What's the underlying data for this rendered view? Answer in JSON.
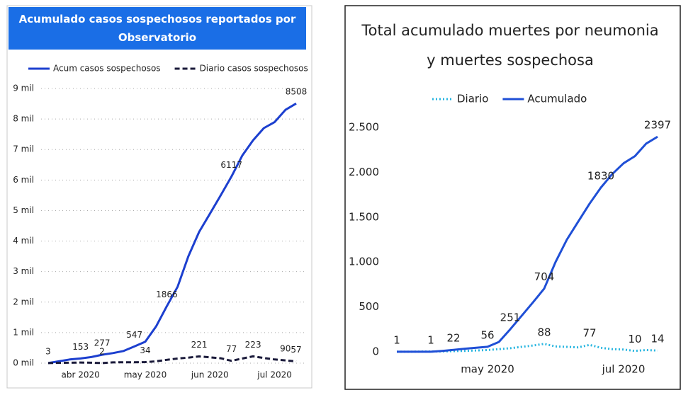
{
  "chart_data": [
    {
      "type": "line",
      "title": "Acumulado casos sospechosos reportados por Observatorio",
      "categories": [
        null,
        null,
        null,
        "abr 2020",
        null,
        null,
        null,
        null,
        null,
        "may 2020",
        null,
        null,
        null,
        null,
        null,
        "jun 2020",
        null,
        null,
        null,
        null,
        null,
        "jul 2020",
        null,
        null
      ],
      "series": [
        {
          "name": "Acum casos sospechosos",
          "color": "#1c3fcf",
          "dash": "solid",
          "values": [
            3,
            60,
            120,
            153,
            200,
            277,
            330,
            400,
            547,
            700,
            1200,
            1866,
            2500,
            3500,
            4300,
            4900,
            5500,
            6117,
            6800,
            7300,
            7700,
            7900,
            8300,
            8508
          ],
          "value_labels": [
            "3",
            null,
            null,
            "153",
            null,
            "277",
            null,
            null,
            "547",
            null,
            null,
            "1866",
            null,
            null,
            null,
            null,
            null,
            "6117",
            null,
            null,
            null,
            null,
            null,
            "8508"
          ]
        },
        {
          "name": "Diario casos sospechosos",
          "color": "#1a1a3a",
          "dash": "dashed",
          "values": [
            3,
            10,
            15,
            20,
            15,
            2,
            25,
            30,
            28,
            34,
            60,
            110,
            150,
            180,
            221,
            190,
            160,
            77,
            150,
            223,
            170,
            120,
            90,
            57
          ],
          "value_labels": [
            null,
            null,
            null,
            null,
            null,
            "2",
            null,
            null,
            null,
            "34",
            null,
            null,
            null,
            null,
            "221",
            null,
            null,
            "77",
            null,
            "223",
            null,
            null,
            "90",
            "57"
          ]
        }
      ],
      "ylim": [
        0,
        9000
      ],
      "yticks": [
        {
          "value": 0,
          "label": "0 mil"
        },
        {
          "value": 1000,
          "label": "1 mil"
        },
        {
          "value": 2000,
          "label": "2 mil"
        },
        {
          "value": 3000,
          "label": "3 mil"
        },
        {
          "value": 4000,
          "label": "4 mil"
        },
        {
          "value": 5000,
          "label": "5 mil"
        },
        {
          "value": 6000,
          "label": "6 mil"
        },
        {
          "value": 7000,
          "label": "7 mil"
        },
        {
          "value": 8000,
          "label": "8 mil"
        },
        {
          "value": 9000,
          "label": "9 mil"
        }
      ],
      "grid": true,
      "legend": "top"
    },
    {
      "type": "line",
      "title": "Total acumulado muertes por neumonia y muertes sospechosa",
      "categories": [
        null,
        null,
        null,
        null,
        null,
        null,
        null,
        null,
        "may 2020",
        null,
        null,
        null,
        null,
        null,
        null,
        null,
        null,
        null,
        null,
        null,
        "jul 2020",
        null,
        null,
        null
      ],
      "series": [
        {
          "name": "Diario",
          "color": "#29b6e0",
          "dash": "dotted",
          "values": [
            1,
            1,
            2,
            3,
            5,
            8,
            10,
            15,
            20,
            30,
            40,
            55,
            70,
            88,
            60,
            55,
            50,
            77,
            45,
            30,
            25,
            10,
            20,
            14
          ],
          "value_labels": [
            null,
            null,
            null,
            null,
            null,
            null,
            null,
            null,
            null,
            null,
            null,
            null,
            null,
            "88",
            null,
            null,
            null,
            "77",
            null,
            null,
            null,
            "10",
            null,
            "14"
          ]
        },
        {
          "name": "Acumulado",
          "color": "#1f4fd6",
          "dash": "solid",
          "values": [
            1,
            1,
            1,
            1,
            10,
            22,
            35,
            45,
            56,
            110,
            251,
            400,
            550,
            704,
            1000,
            1250,
            1450,
            1650,
            1830,
            1980,
            2100,
            2180,
            2320,
            2397
          ],
          "value_labels": [
            "1",
            null,
            null,
            "1",
            null,
            "22",
            null,
            null,
            "56",
            null,
            "251",
            null,
            null,
            "704",
            null,
            null,
            null,
            null,
            "1830",
            null,
            null,
            null,
            null,
            "2397"
          ]
        }
      ],
      "ylim": [
        0,
        2500
      ],
      "yticks": [
        0,
        500,
        {
          "value": 1000,
          "label": "1.000"
        },
        {
          "value": 1500,
          "label": "1.500"
        },
        {
          "value": 2000,
          "label": "2.000"
        },
        {
          "value": 2500,
          "label": "2.500"
        }
      ],
      "grid": false,
      "legend": "top"
    }
  ]
}
